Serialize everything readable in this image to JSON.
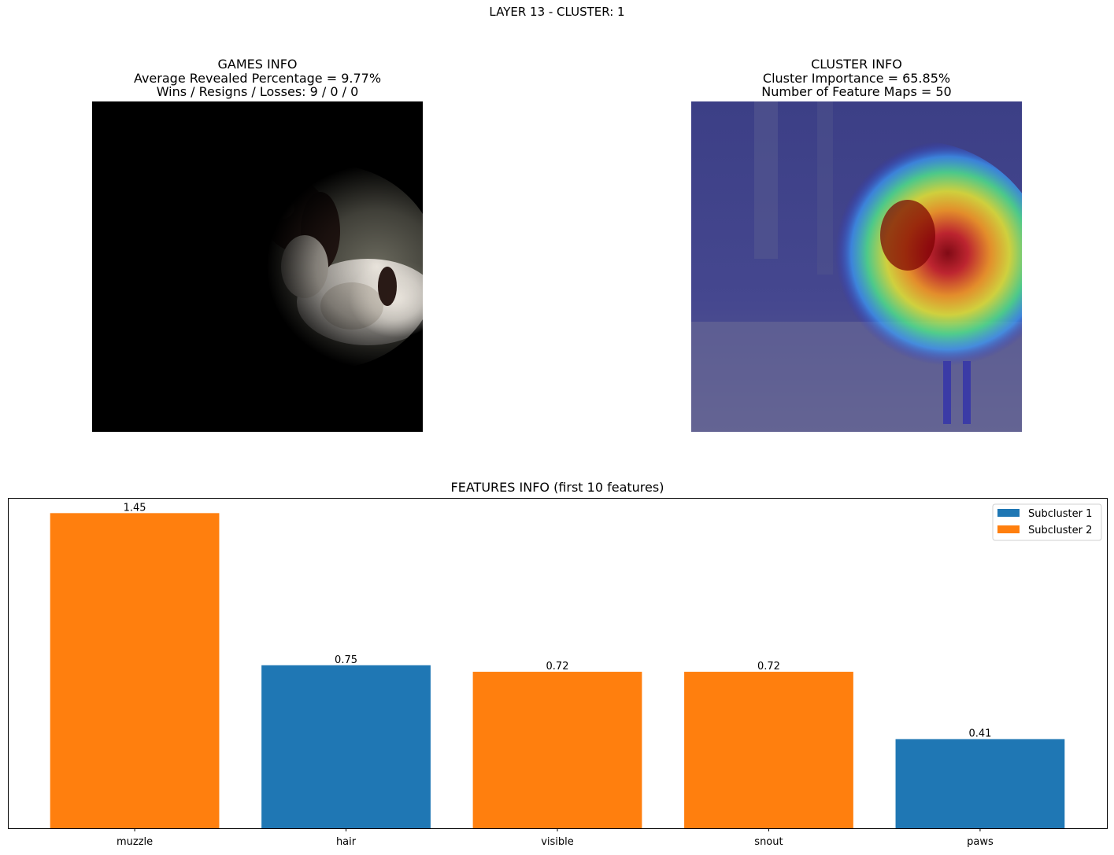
{
  "suptitle": "LAYER 13 - CLUSTER: 1",
  "games_info": {
    "title": "GAMES INFO",
    "line1": "Average Revealed Percentage = 9.77%",
    "line2": "Wins / Resigns / Losses: 9 / 0 / 0"
  },
  "cluster_info": {
    "title": "CLUSTER INFO",
    "line1": "Cluster Importance = 65.85%",
    "line2": "Number of Feature Maps = 50"
  },
  "colors": {
    "subcluster_1": "#1f77b4",
    "subcluster_2": "#ff7f0e"
  },
  "chart_data": {
    "type": "bar",
    "title": "FEATURES INFO (first 10 features)",
    "categories": [
      "muzzle",
      "hair",
      "visible",
      "snout",
      "paws"
    ],
    "values": [
      1.45,
      0.75,
      0.72,
      0.72,
      0.41
    ],
    "value_labels": [
      "1.45",
      "0.75",
      "0.72",
      "0.72",
      "0.41"
    ],
    "subcluster": [
      2,
      1,
      2,
      2,
      1
    ],
    "legend": [
      "Subcluster 1",
      "Subcluster 2"
    ],
    "legend_position": "top-right",
    "ylim": [
      0,
      1.52
    ],
    "xlabel": "",
    "ylabel": "",
    "grid": false
  }
}
